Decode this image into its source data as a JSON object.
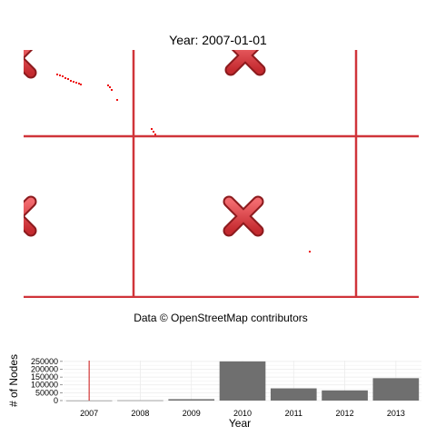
{
  "title": "Year: 2007-01-01",
  "credit": "Data © OpenStreetMap contributors",
  "colors": {
    "line": "#d0343a",
    "marker_fill": "#e8474c",
    "marker_dark": "#8c1a1d",
    "dot": "#ee1111",
    "bar": "#6f6f6f",
    "highlight": "#cc1111",
    "grid": "#ebebeb"
  },
  "map": {
    "marker_icon": "red-x-marker-icon"
  },
  "chart_data": {
    "type": "bar",
    "categories": [
      "2007",
      "2008",
      "2009",
      "2010",
      "2011",
      "2012",
      "2013"
    ],
    "values": [
      800,
      1500,
      9000,
      250000,
      78000,
      65000,
      143000
    ],
    "highlight_category": "2007",
    "xlabel": "Year",
    "ylabel": "# of Nodes",
    "yticks": [
      0,
      50000,
      100000,
      150000,
      200000,
      250000
    ],
    "ylim": [
      0,
      255000
    ],
    "grid": true
  }
}
